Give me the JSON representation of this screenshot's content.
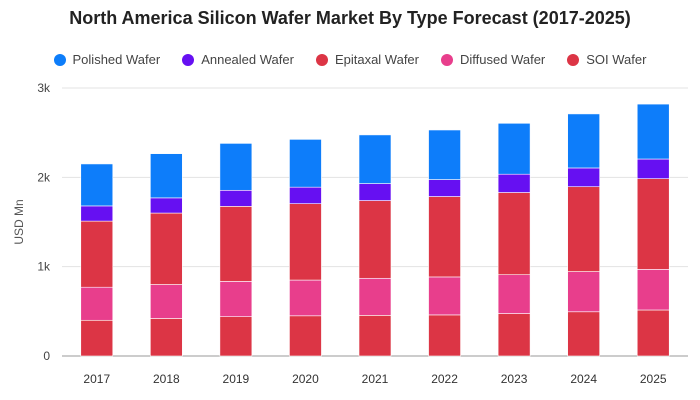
{
  "chart_data": {
    "type": "bar",
    "stacked": true,
    "title": "North America Silicon Wafer Market By Type Forecast (2017-2025)",
    "xlabel": "",
    "ylabel": "USD Mn",
    "ylim": [
      0,
      3000
    ],
    "y_ticks": [
      "0",
      "1k",
      "2k",
      "3k"
    ],
    "categories": [
      "2017",
      "2018",
      "2019",
      "2020",
      "2021",
      "2022",
      "2023",
      "2024",
      "2025"
    ],
    "legend_position": "top",
    "grid": true,
    "series": [
      {
        "name": "SOI Wafer",
        "color": "#dc3545",
        "values": [
          400,
          420,
          440,
          450,
          455,
          460,
          475,
          495,
          515
        ]
      },
      {
        "name": "Diffused Wafer",
        "color": "#e83e8c",
        "values": [
          370,
          380,
          395,
          400,
          415,
          425,
          435,
          450,
          455
        ]
      },
      {
        "name": "Epitaxal Wafer",
        "color": "#dc3545",
        "values": [
          740,
          800,
          840,
          855,
          870,
          900,
          920,
          950,
          1015
        ]
      },
      {
        "name": "Annealed Wafer",
        "color": "#6610f2",
        "values": [
          170,
          170,
          180,
          185,
          190,
          190,
          205,
          210,
          220
        ]
      },
      {
        "name": "Polished Wafer",
        "color": "#0d7dfa",
        "values": [
          470,
          495,
          525,
          535,
          545,
          555,
          570,
          605,
          615
        ]
      }
    ]
  },
  "legend_order": [
    "Polished Wafer",
    "Annealed Wafer",
    "Epitaxal Wafer",
    "Diffused Wafer",
    "SOI Wafer"
  ]
}
